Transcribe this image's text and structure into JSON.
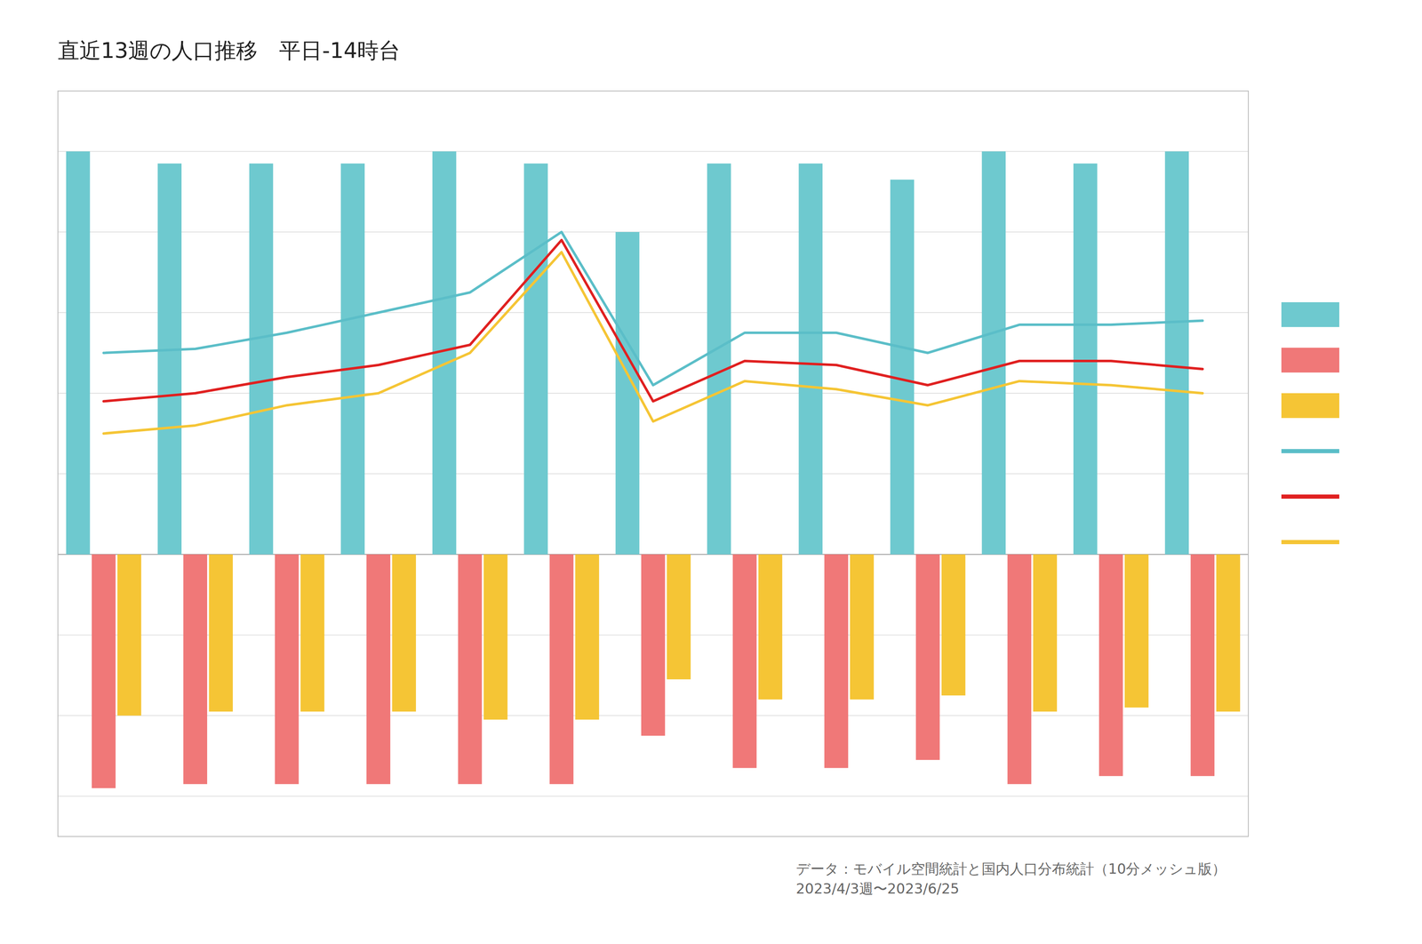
{
  "chart_data": {
    "type": "bar",
    "title": "直近13週の人口推移　平日‐14時台",
    "categories": [
      null,
      null,
      null,
      null,
      null,
      null,
      null,
      null,
      null,
      null,
      null,
      null,
      null
    ],
    "series": [
      {
        "type": "bar",
        "color": "#6EC9CF",
        "values": [
          1.0,
          0.97,
          0.97,
          0.97,
          1.0,
          0.97,
          0.8,
          0.97,
          0.97,
          0.93,
          1.0,
          0.97,
          1.0
        ]
      },
      {
        "type": "bar",
        "color": "#F07878",
        "values": [
          -0.58,
          -0.57,
          -0.57,
          -0.57,
          -0.57,
          -0.57,
          -0.45,
          -0.53,
          -0.53,
          -0.51,
          -0.57,
          -0.55,
          -0.55
        ]
      },
      {
        "type": "bar",
        "color": "#F5C535",
        "values": [
          -0.4,
          -0.39,
          -0.39,
          -0.39,
          -0.41,
          -0.41,
          -0.31,
          -0.36,
          -0.36,
          -0.35,
          -0.39,
          -0.38,
          -0.39
        ]
      },
      {
        "type": "line",
        "color": "#5BBEC8",
        "values": [
          0.5,
          0.51,
          0.55,
          0.6,
          0.65,
          0.8,
          0.42,
          0.55,
          0.55,
          0.5,
          0.57,
          0.57,
          0.58
        ]
      },
      {
        "type": "line",
        "color": "#E02020",
        "values": [
          0.38,
          0.4,
          0.44,
          0.47,
          0.52,
          0.78,
          0.38,
          0.48,
          0.47,
          0.42,
          0.48,
          0.48,
          0.46
        ]
      },
      {
        "type": "line",
        "color": "#F5C535",
        "values": [
          0.3,
          0.32,
          0.37,
          0.4,
          0.5,
          0.75,
          0.33,
          0.43,
          0.41,
          0.37,
          0.43,
          0.42,
          0.4
        ]
      }
    ],
    "ylim": [
      -0.7,
      1.15
    ],
    "yticks": [
      0.0,
      0.2,
      0.4,
      0.6,
      0.8,
      1.0,
      -0.2,
      -0.4,
      -0.6
    ],
    "grid": true,
    "tick_labels": false,
    "legend": "right",
    "annotations": [
      "データ：モバイル空間統計と国内人口分布統計（10分メッシュ版）\n2023/4/3週〜2023/6/25"
    ]
  }
}
